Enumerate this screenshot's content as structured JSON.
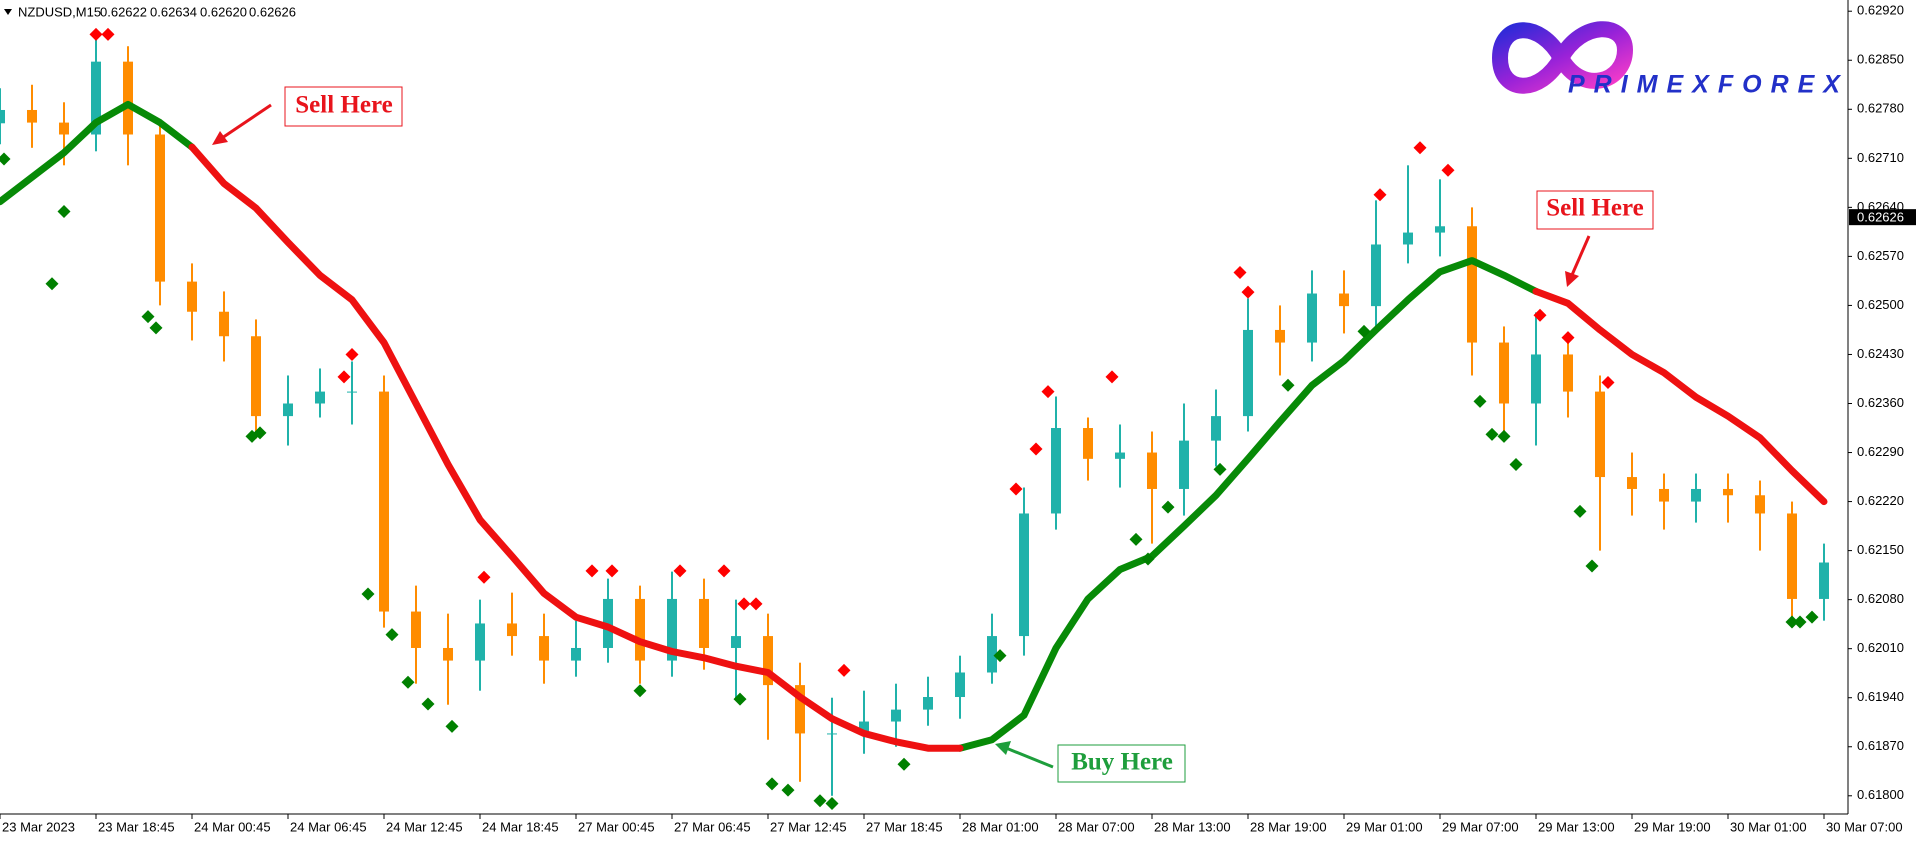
{
  "chart_data": {
    "type": "candlestick",
    "symbol": "NZDUSD,M15",
    "header_prices": [
      {
        "value": 0.62622,
        "label": "0.62622"
      },
      {
        "value": 0.62634,
        "label": "0.62634"
      },
      {
        "value": 0.6262,
        "label": "0.62620"
      },
      {
        "value": 0.62626,
        "label": "0.62626"
      }
    ],
    "last_price": 0.62626,
    "logo": "PRIMEXFOREX",
    "annotations": [
      {
        "text": "Sell Here",
        "color": "#e8141c"
      },
      {
        "text": "Sell Here",
        "color": "#e8141c"
      },
      {
        "text": "Buy Here",
        "color": "#1e9e3c"
      }
    ],
    "up_color": "#20b2aa",
    "down_color": "#ff8c00",
    "x": [
      0,
      8,
      16,
      24,
      32,
      40,
      48,
      56,
      64,
      72,
      80,
      88,
      96,
      104,
      112,
      120,
      128,
      136,
      144,
      152,
      160,
      168,
      176,
      184,
      192,
      200,
      208,
      216,
      224,
      232,
      240,
      248,
      256,
      264,
      272,
      280,
      288,
      296,
      304,
      312,
      320,
      328,
      336,
      344,
      352,
      360,
      368,
      376,
      384,
      392,
      400,
      408,
      416,
      424,
      432,
      440,
      448,
      456
    ],
    "open": [
      0.6276,
      0.62779,
      0.62761,
      0.62744,
      0.62848,
      0.62744,
      0.62534,
      0.62491,
      0.62456,
      0.62342,
      0.6236,
      0.62377,
      0.62377,
      0.62063,
      0.62011,
      0.61993,
      0.62046,
      0.62028,
      0.61993,
      0.62011,
      0.62081,
      0.61993,
      0.62081,
      0.62011,
      0.62028,
      0.61958,
      0.61889,
      0.61889,
      0.61906,
      0.61923,
      0.61941,
      0.61976,
      0.62028,
      0.62203,
      0.62325,
      0.62281,
      0.6229,
      0.62238,
      0.62307,
      0.62342,
      0.62465,
      0.62447,
      0.62517,
      0.62499,
      0.62587,
      0.62604,
      0.62613,
      0.62447,
      0.6236,
      0.6243,
      0.62377,
      0.62255,
      0.62238,
      0.6222,
      0.62238,
      0.62229,
      0.62203,
      0.62081
    ],
    "high": [
      0.6281,
      0.62815,
      0.6279,
      0.6288,
      0.6287,
      0.6276,
      0.6256,
      0.6252,
      0.6248,
      0.624,
      0.6241,
      0.6242,
      0.624,
      0.621,
      0.6206,
      0.6208,
      0.6209,
      0.6206,
      0.6205,
      0.6211,
      0.621,
      0.6212,
      0.6211,
      0.6208,
      0.6206,
      0.6199,
      0.6194,
      0.6195,
      0.6196,
      0.6197,
      0.62,
      0.6206,
      0.6224,
      0.6237,
      0.6234,
      0.6233,
      0.6232,
      0.6236,
      0.6238,
      0.6251,
      0.625,
      0.6255,
      0.6255,
      0.6265,
      0.627,
      0.6268,
      0.6264,
      0.6247,
      0.6249,
      0.6245,
      0.624,
      0.6229,
      0.6226,
      0.6226,
      0.6226,
      0.6225,
      0.6222,
      0.6216
    ],
    "low": [
      0.6273,
      0.62725,
      0.627,
      0.6272,
      0.627,
      0.625,
      0.6245,
      0.6242,
      0.6231,
      0.623,
      0.6234,
      0.6233,
      0.6204,
      0.6196,
      0.6193,
      0.6195,
      0.62,
      0.6196,
      0.6197,
      0.6199,
      0.6196,
      0.6197,
      0.6198,
      0.6194,
      0.6188,
      0.6182,
      0.618,
      0.6186,
      0.6187,
      0.619,
      0.6191,
      0.6196,
      0.62,
      0.6218,
      0.6225,
      0.6224,
      0.6216,
      0.622,
      0.6227,
      0.6232,
      0.624,
      0.6242,
      0.6246,
      0.6247,
      0.6256,
      0.6257,
      0.624,
      0.6232,
      0.623,
      0.6234,
      0.6215,
      0.622,
      0.6218,
      0.6219,
      0.6219,
      0.6215,
      0.6204,
      0.6205
    ],
    "close": [
      0.62779,
      0.62761,
      0.62744,
      0.62848,
      0.62744,
      0.62534,
      0.62491,
      0.62456,
      0.62342,
      0.6236,
      0.62377,
      0.62377,
      0.62063,
      0.62011,
      0.61993,
      0.62046,
      0.62028,
      0.61993,
      0.62011,
      0.62081,
      0.61993,
      0.62081,
      0.62011,
      0.62028,
      0.61958,
      0.61889,
      0.61889,
      0.61906,
      0.61923,
      0.61941,
      0.61976,
      0.62028,
      0.62203,
      0.62325,
      0.62281,
      0.6229,
      0.62238,
      0.62307,
      0.62342,
      0.62465,
      0.62447,
      0.62517,
      0.62499,
      0.62587,
      0.62604,
      0.62613,
      0.62447,
      0.6236,
      0.6243,
      0.62377,
      0.62255,
      0.62238,
      0.6222,
      0.62238,
      0.62229,
      0.62203,
      0.62081,
      0.62133
    ],
    "series": [
      {
        "color": "#078a07",
        "values": [
          0.62648,
          0.62683,
          0.62718,
          0.62761,
          0.62787,
          0.62761,
          0.62726,
          null,
          null,
          null,
          null,
          null,
          null,
          null,
          null,
          null,
          null,
          null,
          null,
          null,
          null,
          null,
          null,
          null,
          null,
          null,
          null,
          null,
          null,
          null,
          0.61868,
          0.6188,
          0.61915,
          0.62011,
          0.62081,
          0.62123,
          0.62142,
          0.62185,
          0.62229,
          0.62281,
          0.62334,
          0.62386,
          0.62421,
          0.62465,
          0.62508,
          0.62548,
          0.62564,
          0.62543,
          0.6252,
          null,
          null,
          null,
          null,
          null,
          null,
          null,
          null,
          null
        ]
      },
      {
        "color": "#ee1111",
        "values": [
          null,
          null,
          null,
          null,
          null,
          null,
          0.62726,
          0.62674,
          0.62639,
          0.6259,
          0.62543,
          0.62508,
          0.62447,
          0.6236,
          0.62273,
          0.62194,
          0.62142,
          0.62089,
          0.62055,
          0.62041,
          0.6202,
          0.62006,
          0.61997,
          0.61985,
          0.61976,
          0.61941,
          0.6191,
          0.61889,
          0.61877,
          0.61868,
          0.61868,
          null,
          null,
          null,
          null,
          null,
          null,
          null,
          null,
          null,
          null,
          null,
          null,
          null,
          null,
          null,
          null,
          null,
          0.6252,
          0.62503,
          0.62465,
          0.6243,
          0.62404,
          0.62369,
          0.62342,
          0.62311,
          0.62264,
          0.6222
        ]
      }
    ],
    "markers": [
      {
        "color": "#ff0000",
        "x": [
          24,
          27,
          86,
          88,
          121,
          148,
          153,
          170,
          181,
          186,
          189,
          211,
          254,
          259,
          262,
          278,
          310,
          312,
          345,
          355,
          362,
          385,
          392,
          402
        ],
        "values": [
          0.62887,
          0.62887,
          0.62398,
          0.6243,
          0.62112,
          0.62121,
          0.62121,
          0.62121,
          0.62121,
          0.62074,
          0.62074,
          0.61979,
          0.62238,
          0.62295,
          0.62377,
          0.62398,
          0.62547,
          0.62519,
          0.62658,
          0.62725,
          0.62693,
          0.62486,
          0.62454,
          0.6239
        ]
      },
      {
        "color": "#008000",
        "x": [
          1,
          13,
          16,
          37,
          39,
          63,
          65,
          92,
          98,
          102,
          107,
          113,
          160,
          185,
          193,
          197,
          205,
          208,
          226,
          250,
          284,
          287,
          292,
          305,
          322,
          341,
          370,
          373,
          376,
          379,
          395,
          398,
          448,
          450,
          453
        ],
        "values": [
          0.62709,
          0.62531,
          0.62634,
          0.62484,
          0.62468,
          0.62313,
          0.62318,
          0.62088,
          0.6203,
          0.61962,
          0.61931,
          0.61899,
          0.6195,
          0.61938,
          0.61817,
          0.61808,
          0.61793,
          0.61789,
          0.61845,
          0.62,
          0.62166,
          0.62138,
          0.62212,
          0.62266,
          0.62386,
          0.62463,
          0.62363,
          0.62316,
          0.62313,
          0.62273,
          0.62206,
          0.62128,
          0.62048,
          0.62048,
          0.62055
        ]
      }
    ],
    "xlim": [
      0,
      462
    ],
    "xticks": [
      {
        "value": 0,
        "label": "23 Mar 2023"
      },
      {
        "value": 24,
        "label": "23 Mar 18:45"
      },
      {
        "value": 48,
        "label": "24 Mar 00:45"
      },
      {
        "value": 72,
        "label": "24 Mar 06:45"
      },
      {
        "value": 96,
        "label": "24 Mar 12:45"
      },
      {
        "value": 120,
        "label": "24 Mar 18:45"
      },
      {
        "value": 144,
        "label": "27 Mar 00:45"
      },
      {
        "value": 168,
        "label": "27 Mar 06:45"
      },
      {
        "value": 192,
        "label": "27 Mar 12:45"
      },
      {
        "value": 216,
        "label": "27 Mar 18:45"
      },
      {
        "value": 240,
        "label": "28 Mar 01:00"
      },
      {
        "value": 264,
        "label": "28 Mar 07:00"
      },
      {
        "value": 288,
        "label": "28 Mar 13:00"
      },
      {
        "value": 312,
        "label": "28 Mar 19:00"
      },
      {
        "value": 336,
        "label": "29 Mar 01:00"
      },
      {
        "value": 360,
        "label": "29 Mar 07:00"
      },
      {
        "value": 384,
        "label": "29 Mar 13:00"
      },
      {
        "value": 408,
        "label": "29 Mar 19:00"
      },
      {
        "value": 432,
        "label": "30 Mar 01:00"
      },
      {
        "value": 456,
        "label": "30 Mar 07:00"
      }
    ],
    "ylim": [
      0.61774,
      0.62936
    ],
    "yticks": [
      {
        "value": 0.6292,
        "label": "0.62920"
      },
      {
        "value": 0.6285,
        "label": "0.62850"
      },
      {
        "value": 0.6278,
        "label": "0.62780"
      },
      {
        "value": 0.6271,
        "label": "0.62710"
      },
      {
        "value": 0.6264,
        "label": "0.62640"
      },
      {
        "value": 0.6257,
        "label": "0.62570"
      },
      {
        "value": 0.625,
        "label": "0.62500"
      },
      {
        "value": 0.6243,
        "label": "0.62430"
      },
      {
        "value": 0.6236,
        "label": "0.62360"
      },
      {
        "value": 0.6229,
        "label": "0.62290"
      },
      {
        "value": 0.6222,
        "label": "0.62220"
      },
      {
        "value": 0.6215,
        "label": "0.62150"
      },
      {
        "value": 0.6208,
        "label": "0.62080"
      },
      {
        "value": 0.6201,
        "label": "0.62010"
      },
      {
        "value": 0.6194,
        "label": "0.61940"
      },
      {
        "value": 0.6187,
        "label": "0.61870"
      },
      {
        "value": 0.618,
        "label": "0.61800"
      }
    ]
  }
}
